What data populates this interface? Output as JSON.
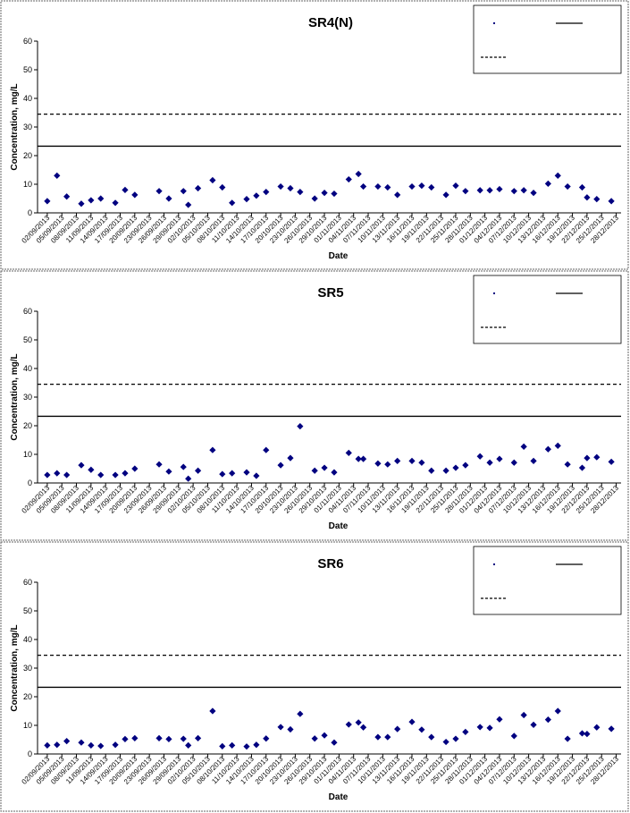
{
  "chart_data": [
    {
      "type": "scatter",
      "title": "SR4(N)",
      "x_label": "Date",
      "y_label": "Concentration, mg/L",
      "xlim": [
        "31/08/2013",
        "29/12/2013"
      ],
      "xticks": [
        "02/09/2013",
        "05/09/2013",
        "08/09/2013",
        "11/09/2013",
        "14/09/2013",
        "17/09/2013",
        "20/09/2013",
        "23/09/2013",
        "26/09/2013",
        "29/09/2013",
        "02/10/2013",
        "05/10/2013",
        "08/10/2013",
        "11/10/2013",
        "14/10/2013",
        "17/10/2013",
        "20/10/2013",
        "23/10/2013",
        "26/10/2013",
        "29/10/2013",
        "01/11/2013",
        "04/11/2013",
        "07/11/2013",
        "10/11/2013",
        "13/11/2013",
        "16/11/2013",
        "19/11/2013",
        "22/11/2013",
        "25/11/2013",
        "28/11/2013",
        "01/12/2013",
        "04/12/2013",
        "07/12/2013",
        "10/12/2013",
        "13/12/2013",
        "16/12/2013",
        "19/12/2013",
        "22/12/2013",
        "25/12/2013",
        "28/12/2013"
      ],
      "ylim": [
        0,
        60
      ],
      "yticks": [
        0,
        10,
        20,
        30,
        40,
        50,
        60
      ],
      "grid": false,
      "x": [
        "02/09/2013",
        "04/09/2013",
        "06/09/2013",
        "09/09/2013",
        "11/09/2013",
        "13/09/2013",
        "16/09/2013",
        "18/09/2013",
        "20/09/2013",
        "25/09/2013",
        "27/09/2013",
        "30/09/2013",
        "01/10/2013",
        "03/10/2013",
        "06/10/2013",
        "08/10/2013",
        "10/10/2013",
        "13/10/2013",
        "15/10/2013",
        "17/10/2013",
        "20/10/2013",
        "22/10/2013",
        "24/10/2013",
        "27/10/2013",
        "29/10/2013",
        "31/10/2013",
        "03/11/2013",
        "05/11/2013",
        "06/11/2013",
        "09/11/2013",
        "11/11/2013",
        "13/11/2013",
        "16/11/2013",
        "18/11/2013",
        "20/11/2013",
        "23/11/2013",
        "25/11/2013",
        "27/11/2013",
        "30/11/2013",
        "02/12/2013",
        "04/12/2013",
        "07/12/2013",
        "09/12/2013",
        "11/12/2013",
        "14/12/2013",
        "16/12/2013",
        "18/12/2013",
        "21/12/2013",
        "22/12/2013",
        "24/12/2013",
        "27/12/2013"
      ],
      "series": [
        {
          "color": "#000080",
          "marker": "diamond",
          "values": [
            4.1,
            13,
            5.7,
            3.2,
            4.4,
            5,
            3.5,
            8,
            6.3,
            7.6,
            5,
            7.6,
            2.8,
            8.6,
            11.4,
            8.9,
            3.5,
            4.8,
            6,
            7.3,
            9.2,
            8.6,
            7.3,
            5,
            7,
            6.7,
            11.7,
            13.6,
            9.2,
            9.2,
            8.9,
            6.3,
            9.2,
            9.5,
            8.9,
            6.3,
            9.5,
            7.6,
            7.9,
            7.9,
            8.3,
            7.6,
            7.9,
            7,
            10.2,
            13,
            9.2,
            8.9,
            5.4,
            4.8,
            4.1
          ]
        }
      ],
      "reference_lines": [
        {
          "value": 34.5,
          "style": "dashed",
          "color": "#000000"
        },
        {
          "value": 23.3,
          "style": "solid",
          "color": "#000000"
        }
      ]
    },
    {
      "type": "scatter",
      "title": "SR5",
      "x_label": "Date",
      "y_label": "Concentration, mg/L",
      "xlim": [
        "31/08/2013",
        "29/12/2013"
      ],
      "xticks": [
        "02/09/2013",
        "05/09/2013",
        "08/09/2013",
        "11/09/2013",
        "14/09/2013",
        "17/09/2013",
        "20/09/2013",
        "23/09/2013",
        "26/09/2013",
        "29/09/2013",
        "02/10/2013",
        "05/10/2013",
        "08/10/2013",
        "11/10/2013",
        "14/10/2013",
        "17/10/2013",
        "20/10/2013",
        "23/10/2013",
        "26/10/2013",
        "29/10/2013",
        "01/11/2013",
        "04/11/2013",
        "07/11/2013",
        "10/11/2013",
        "13/11/2013",
        "16/11/2013",
        "19/11/2013",
        "22/11/2013",
        "25/11/2013",
        "28/11/2013",
        "01/12/2013",
        "04/12/2013",
        "07/12/2013",
        "10/12/2013",
        "13/12/2013",
        "16/12/2013",
        "19/12/2013",
        "22/12/2013",
        "25/12/2013",
        "28/12/2013"
      ],
      "ylim": [
        0,
        60
      ],
      "yticks": [
        0,
        10,
        20,
        30,
        40,
        50,
        60
      ],
      "grid": false,
      "x": [
        "02/09/2013",
        "04/09/2013",
        "06/09/2013",
        "09/09/2013",
        "11/09/2013",
        "13/09/2013",
        "16/09/2013",
        "18/09/2013",
        "20/09/2013",
        "25/09/2013",
        "27/09/2013",
        "30/09/2013",
        "01/10/2013",
        "03/10/2013",
        "06/10/2013",
        "08/10/2013",
        "10/10/2013",
        "13/10/2013",
        "15/10/2013",
        "17/10/2013",
        "20/10/2013",
        "22/10/2013",
        "24/10/2013",
        "27/10/2013",
        "29/10/2013",
        "31/10/2013",
        "03/11/2013",
        "05/11/2013",
        "06/11/2013",
        "09/11/2013",
        "11/11/2013",
        "13/11/2013",
        "16/11/2013",
        "18/11/2013",
        "20/11/2013",
        "23/11/2013",
        "25/11/2013",
        "27/11/2013",
        "30/11/2013",
        "02/12/2013",
        "04/12/2013",
        "07/12/2013",
        "09/12/2013",
        "11/12/2013",
        "14/12/2013",
        "16/12/2013",
        "18/12/2013",
        "21/12/2013",
        "22/12/2013",
        "24/12/2013",
        "27/12/2013"
      ],
      "series": [
        {
          "color": "#000080",
          "marker": "diamond",
          "values": [
            2.8,
            3.4,
            2.8,
            6.2,
            4.6,
            2.8,
            2.8,
            3.4,
            5,
            6.5,
            4,
            5.6,
            1.5,
            4.3,
            11.5,
            3.1,
            3.4,
            3.7,
            2.5,
            11.5,
            6.2,
            8.7,
            19.8,
            4.3,
            5.3,
            3.7,
            10.5,
            8.4,
            8.4,
            6.8,
            6.5,
            7.7,
            7.7,
            7.1,
            4.3,
            4.3,
            5.3,
            6.2,
            9.3,
            7.1,
            8.4,
            7.1,
            12.7,
            7.7,
            11.8,
            13,
            6.5,
            5.3,
            8.7,
            9,
            7.4
          ]
        }
      ],
      "reference_lines": [
        {
          "value": 34.5,
          "style": "dashed",
          "color": "#000000"
        },
        {
          "value": 23.3,
          "style": "solid",
          "color": "#000000"
        }
      ]
    },
    {
      "type": "scatter",
      "title": "SR6",
      "x_label": "Date",
      "y_label": "Concentration, mg/L",
      "xlim": [
        "31/08/2013",
        "29/12/2013"
      ],
      "xticks": [
        "02/09/2013",
        "05/09/2013",
        "08/09/2013",
        "11/09/2013",
        "14/09/2013",
        "17/09/2013",
        "20/09/2013",
        "23/09/2013",
        "26/09/2013",
        "29/09/2013",
        "02/10/2013",
        "05/10/2013",
        "08/10/2013",
        "11/10/2013",
        "14/10/2013",
        "17/10/2013",
        "20/10/2013",
        "23/10/2013",
        "26/10/2013",
        "29/10/2013",
        "01/11/2013",
        "04/11/2013",
        "07/11/2013",
        "10/11/2013",
        "13/11/2013",
        "16/11/2013",
        "19/11/2013",
        "22/11/2013",
        "25/11/2013",
        "28/11/2013",
        "01/12/2013",
        "04/12/2013",
        "07/12/2013",
        "10/12/2013",
        "13/12/2013",
        "16/12/2013",
        "19/12/2013",
        "22/12/2013",
        "25/12/2013",
        "28/12/2013"
      ],
      "ylim": [
        0,
        60
      ],
      "yticks": [
        0,
        10,
        20,
        30,
        40,
        50,
        60
      ],
      "grid": false,
      "x": [
        "02/09/2013",
        "04/09/2013",
        "06/09/2013",
        "09/09/2013",
        "11/09/2013",
        "13/09/2013",
        "16/09/2013",
        "18/09/2013",
        "20/09/2013",
        "25/09/2013",
        "27/09/2013",
        "30/09/2013",
        "01/10/2013",
        "03/10/2013",
        "06/10/2013",
        "08/10/2013",
        "10/10/2013",
        "13/10/2013",
        "15/10/2013",
        "17/10/2013",
        "20/10/2013",
        "22/10/2013",
        "24/10/2013",
        "27/10/2013",
        "29/10/2013",
        "31/10/2013",
        "03/11/2013",
        "05/11/2013",
        "06/11/2013",
        "09/11/2013",
        "11/11/2013",
        "13/11/2013",
        "16/11/2013",
        "18/11/2013",
        "20/11/2013",
        "23/11/2013",
        "25/11/2013",
        "27/11/2013",
        "30/11/2013",
        "02/12/2013",
        "04/12/2013",
        "07/12/2013",
        "09/12/2013",
        "11/12/2013",
        "14/12/2013",
        "16/12/2013",
        "18/12/2013",
        "21/12/2013",
        "22/12/2013",
        "24/12/2013",
        "27/12/2013"
      ],
      "series": [
        {
          "color": "#000080",
          "marker": "diamond",
          "values": [
            3,
            3.2,
            4.5,
            4,
            3,
            2.8,
            3.2,
            5.2,
            5.5,
            5.5,
            5.2,
            5.3,
            3,
            5.5,
            15,
            2.7,
            3,
            2.6,
            3.2,
            5.4,
            9.4,
            8.6,
            14,
            5.4,
            6.5,
            4,
            10.3,
            11,
            9.3,
            5.9,
            5.9,
            8.7,
            11.2,
            8.5,
            5.9,
            4.2,
            5.3,
            7.7,
            9.4,
            9.1,
            12.1,
            6.3,
            13.6,
            10.2,
            12,
            15,
            5.3,
            7.2,
            7,
            9.3,
            8.8
          ]
        }
      ],
      "reference_lines": [
        {
          "value": 34.5,
          "style": "dashed",
          "color": "#000000"
        },
        {
          "value": 23.3,
          "style": "solid",
          "color": "#000000"
        }
      ]
    }
  ]
}
